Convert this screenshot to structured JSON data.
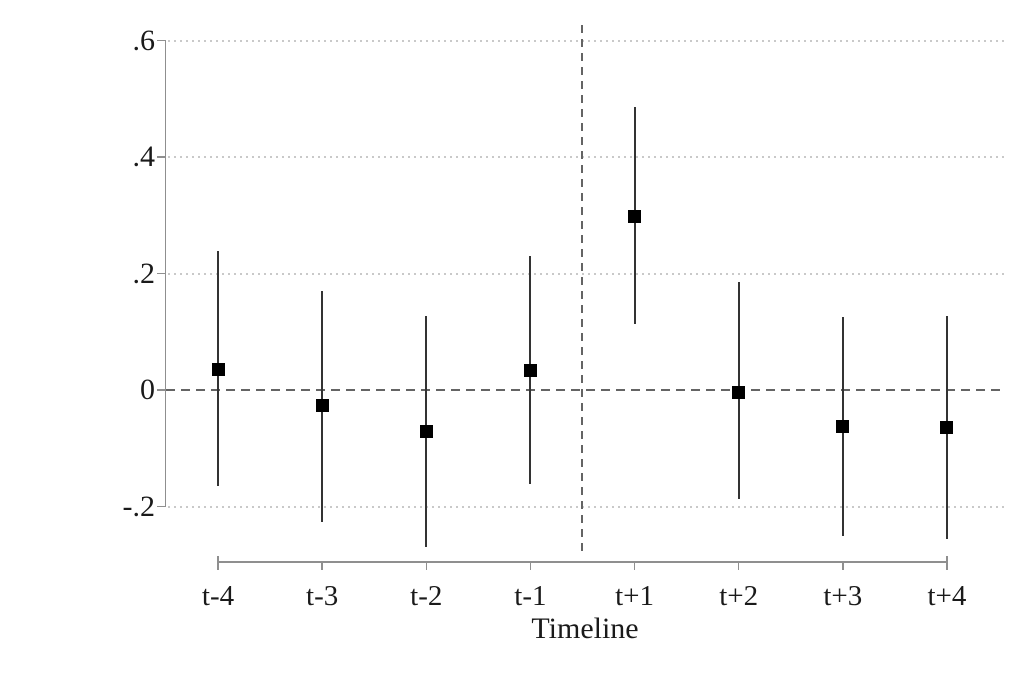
{
  "chart_data": {
    "type": "scatter",
    "subtype": "event-study-coefficient-plot",
    "title": "",
    "xlabel": "Timeline",
    "ylabel": "",
    "categories": [
      "t-4",
      "t-3",
      "t-2",
      "t-1",
      "t+1",
      "t+2",
      "t+3",
      "t+4"
    ],
    "series": [
      {
        "name": "coefficient-estimates",
        "marker": "filled-square",
        "estimates": [
          0.036,
          -0.027,
          -0.072,
          0.034,
          0.298,
          -0.005,
          -0.063,
          -0.064
        ],
        "ci_low": [
          -0.165,
          -0.226,
          -0.27,
          -0.161,
          0.113,
          -0.188,
          -0.251,
          -0.255
        ],
        "ci_high": [
          0.238,
          0.17,
          0.127,
          0.23,
          0.486,
          0.186,
          0.126,
          0.127
        ]
      }
    ],
    "yticks": [
      {
        "label": ".6",
        "value": 0.6
      },
      {
        "label": ".4",
        "value": 0.4
      },
      {
        "label": ".2",
        "value": 0.2
      },
      {
        "label": "0",
        "value": 0.0
      },
      {
        "label": "-.2",
        "value": -0.2
      }
    ],
    "ylim": [
      -0.29,
      0.62
    ],
    "grid": "dotted horizontal lines at labeled y ticks except 0",
    "reference_lines": {
      "horizontal_dashed_at": 0,
      "vertical_dashed_between": [
        "t-1",
        "t+1"
      ]
    },
    "legend_position": "none",
    "colors": {
      "background": "#ffffff",
      "marker": "#000000",
      "ci_line": "#333333",
      "axis": "#8f8f8f",
      "grid_dots": "#c9c9c9",
      "dashed_lines": "#646464",
      "text": "#1a1a1a"
    }
  }
}
